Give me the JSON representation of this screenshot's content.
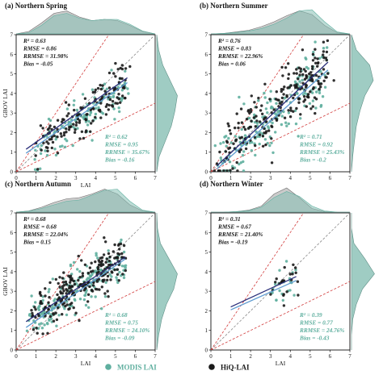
{
  "colors": {
    "modis": "#5faf9f",
    "modis_fill": "#87bfb4",
    "hiq": "#1a1a1a",
    "hiq_fill": "#b9b9b9",
    "one_to_one": "#888888",
    "bounds": "#d23c3c",
    "modis_fit": "#5e9bd0",
    "hiq_fit": "#2b2f7a"
  },
  "legend": {
    "modis_label": "MODIS LAI",
    "hiq_label": "HiQ-LAI"
  },
  "chart_data": [
    {
      "type": "scatter",
      "title": "(a) Northern Spring",
      "xlabel": "LAI",
      "ylabel": "GBOV LAI",
      "xlim": [
        0,
        7
      ],
      "ylim": [
        0,
        7
      ],
      "xticks": [
        "0",
        "1",
        "2",
        "3",
        "4",
        "5",
        "6",
        "7"
      ],
      "yticks": [
        "0",
        "1",
        "2",
        "3",
        "4",
        "5",
        "6",
        "7"
      ],
      "hiq_stats": [
        "R² = 0.63",
        "RMSE = 0.86",
        "RRMSE = 31.98%",
        "Bias = -0.05"
      ],
      "modis_stats": [
        "R² = 0.62",
        "RMSE = 0.95",
        "RRMSE = 35.67%",
        "Bias = -0.16"
      ],
      "hiq_fit": [
        [
          0.5,
          1.15
        ],
        [
          5.6,
          4.8
        ]
      ],
      "modis_fit": [
        [
          0.5,
          0.95
        ],
        [
          5.6,
          4.55
        ]
      ],
      "x_density_hiq": [
        0.0,
        0.1,
        0.45,
        0.85,
        0.95,
        0.7,
        0.55,
        0.6,
        0.55,
        0.35,
        0.1,
        0.0
      ],
      "x_density_modis": [
        0.0,
        0.05,
        0.35,
        0.75,
        0.85,
        0.65,
        0.55,
        0.6,
        0.6,
        0.4,
        0.12,
        0.0
      ],
      "y_density_modis": [
        0.0,
        0.1,
        0.35,
        0.6,
        0.75,
        0.85,
        0.55,
        0.25,
        0.08,
        0.0
      ],
      "cluster": {
        "x0": 0.8,
        "x1": 5.6,
        "slope": 0.68,
        "intercept": 0.6,
        "spread": 0.55,
        "n_hiq": 150,
        "n_modis": 130
      }
    },
    {
      "type": "scatter",
      "title": "(b) Northern Summer",
      "xlabel": "",
      "ylabel": "",
      "xlim": [
        0,
        7
      ],
      "ylim": [
        0,
        7
      ],
      "xticks": [
        "0",
        "1",
        "2",
        "3",
        "4",
        "5",
        "6",
        "7"
      ],
      "yticks": [
        "0",
        "1",
        "2",
        "3",
        "4",
        "5",
        "6",
        "7"
      ],
      "hiq_stats": [
        "R² = 0.76",
        "RMSE = 0.83",
        "RRMSE = 22.96%",
        "Bias = 0.06"
      ],
      "modis_stats": [
        "R² = 0.71",
        "RMSE = 0.92",
        "RRMSE = 25.43%",
        "Bias = -0.2"
      ],
      "hiq_fit": [
        [
          0.3,
          0.3
        ],
        [
          5.9,
          5.6
        ]
      ],
      "modis_fit": [
        [
          0.3,
          0.15
        ],
        [
          5.9,
          5.2
        ]
      ],
      "x_density_hiq": [
        0.0,
        0.02,
        0.08,
        0.15,
        0.3,
        0.5,
        0.75,
        0.95,
        0.8,
        0.35,
        0.05,
        0.0
      ],
      "x_density_modis": [
        0.0,
        0.02,
        0.06,
        0.12,
        0.22,
        0.4,
        0.65,
        0.95,
        1.0,
        0.5,
        0.08,
        0.0
      ],
      "y_density_modis": [
        0.0,
        0.05,
        0.12,
        0.2,
        0.35,
        0.55,
        0.9,
        0.75,
        0.2,
        0.0
      ],
      "cluster": {
        "x0": 0.3,
        "x1": 5.9,
        "slope": 0.92,
        "intercept": 0.15,
        "spread": 0.75,
        "n_hiq": 230,
        "n_modis": 200
      }
    },
    {
      "type": "scatter",
      "title": "(c) Northern Autumn",
      "xlabel": "LAI",
      "ylabel": "GBOV LAI",
      "xlim": [
        0,
        7
      ],
      "ylim": [
        0,
        7
      ],
      "xticks": [
        "0",
        "1",
        "2",
        "3",
        "4",
        "5",
        "6",
        "7"
      ],
      "yticks": [
        "0",
        "1",
        "2",
        "3",
        "4",
        "5",
        "6",
        "7"
      ],
      "hiq_stats": [
        "R² = 0.68",
        "RMSE = 0.68",
        "RRMSE = 22.04%",
        "Bias = 0.15"
      ],
      "modis_stats": [
        "R² = 0.68",
        "RMSE = 0.75",
        "RRMSE = 24.10%",
        "Bias = -0.09"
      ],
      "hiq_fit": [
        [
          0.5,
          1.45
        ],
        [
          5.5,
          4.75
        ]
      ],
      "modis_fit": [
        [
          0.5,
          1.15
        ],
        [
          5.5,
          4.65
        ]
      ],
      "x_density_hiq": [
        0.0,
        0.05,
        0.2,
        0.4,
        0.55,
        0.6,
        0.75,
        0.95,
        0.75,
        0.3,
        0.05,
        0.0
      ],
      "x_density_modis": [
        0.0,
        0.04,
        0.15,
        0.3,
        0.45,
        0.5,
        0.7,
        0.9,
        0.95,
        0.45,
        0.08,
        0.0
      ],
      "y_density_modis": [
        0.0,
        0.08,
        0.2,
        0.4,
        0.7,
        0.85,
        0.5,
        0.15,
        0.03,
        0.0
      ],
      "cluster": {
        "x0": 0.6,
        "x1": 5.5,
        "slope": 0.66,
        "intercept": 1.1,
        "spread": 0.55,
        "n_hiq": 230,
        "n_modis": 200
      }
    },
    {
      "type": "scatter",
      "title": "(d) Northern Winter",
      "xlabel": "LAI",
      "ylabel": "",
      "xlim": [
        0,
        7
      ],
      "ylim": [
        0,
        7
      ],
      "xticks": [
        "0",
        "1",
        "2",
        "3",
        "4",
        "5",
        "6",
        "7"
      ],
      "yticks": [
        "0",
        "1",
        "2",
        "3",
        "4",
        "5",
        "6",
        "7"
      ],
      "hiq_stats": [
        "R² = 0.31",
        "RMSE = 0.67",
        "RRMSE = 21.40%",
        "Bias = -0.19"
      ],
      "modis_stats": [
        "R² = 0.39",
        "RMSE = 0.77",
        "RRMSE = 24.76%",
        "Bias = -0.43"
      ],
      "hiq_fit": [
        [
          1.0,
          2.2
        ],
        [
          4.3,
          3.75
        ]
      ],
      "modis_fit": [
        [
          1.0,
          2.05
        ],
        [
          4.3,
          3.55
        ]
      ],
      "x_density_hiq": [
        0.0,
        0.0,
        0.02,
        0.08,
        0.25,
        0.75,
        1.0,
        0.6,
        0.15,
        0.02,
        0.0,
        0.0
      ],
      "x_density_modis": [
        0.0,
        0.0,
        0.02,
        0.06,
        0.2,
        0.6,
        0.85,
        0.65,
        0.25,
        0.05,
        0.0,
        0.0
      ],
      "y_density_modis": [
        0.0,
        0.0,
        0.05,
        0.2,
        0.45,
        0.95,
        0.55,
        0.1,
        0.0,
        0.0
      ],
      "cluster": {
        "x0": 3.0,
        "x1": 4.3,
        "slope": 0.5,
        "intercept": 1.6,
        "spread": 0.5,
        "n_hiq": 22,
        "n_modis": 22
      }
    }
  ]
}
